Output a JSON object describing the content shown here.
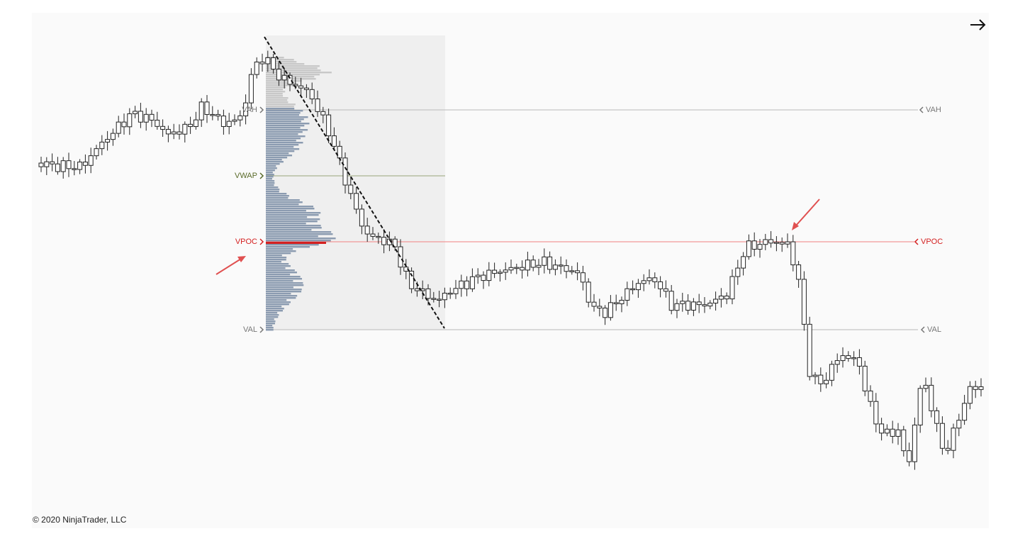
{
  "levels_left": {
    "vah": "VAH",
    "vwap": "VWAP",
    "vpoc": "VPOC",
    "val": "VAL"
  },
  "levels_right": {
    "vah": "VAH",
    "vpoc": "VPOC",
    "val": "VAL"
  },
  "footer": "© 2020 NinjaTrader, LLC"
}
